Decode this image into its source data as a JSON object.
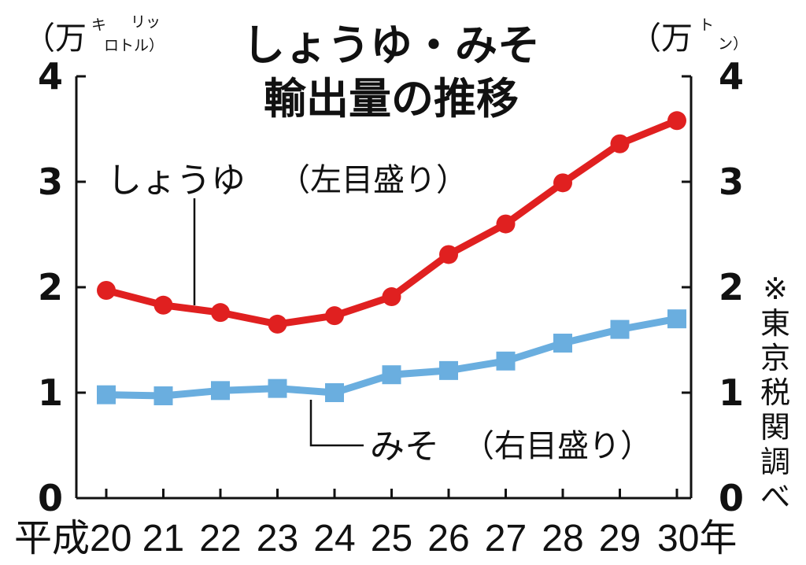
{
  "chart_data": {
    "type": "line",
    "title_line1": "しょうゆ・みそ",
    "title_line2": "輸出量の推移",
    "categories": [
      "平成20",
      "21",
      "22",
      "23",
      "24",
      "25",
      "26",
      "27",
      "28",
      "29",
      "30年"
    ],
    "left_axis": {
      "unit_main": "（万",
      "unit_top": "リッ",
      "unit_top2": "キ",
      "unit_bottom": "ロトル）",
      "ticks": [
        "0",
        "1",
        "2",
        "3",
        "4"
      ],
      "ylim": [
        0,
        4
      ]
    },
    "right_axis": {
      "unit_main": "（万",
      "unit_top": "ト",
      "unit_bottom": "ン）",
      "ticks": [
        "0",
        "1",
        "2",
        "3",
        "4"
      ],
      "ylim": [
        0,
        4
      ]
    },
    "series": [
      {
        "name": "しょうゆ",
        "axis_note": "（左目盛り）",
        "color": "#e02020",
        "marker": "circle",
        "values": [
          1.97,
          1.83,
          1.76,
          1.65,
          1.73,
          1.91,
          2.31,
          2.6,
          2.99,
          3.36,
          3.58
        ]
      },
      {
        "name": "みそ",
        "axis_note": "（右目盛り）",
        "color": "#6aaedf",
        "marker": "square",
        "values": [
          0.98,
          0.97,
          1.02,
          1.04,
          1.0,
          1.17,
          1.21,
          1.3,
          1.47,
          1.6,
          1.7
        ]
      }
    ],
    "source_note": "※東京税関調べ",
    "grid": false
  }
}
